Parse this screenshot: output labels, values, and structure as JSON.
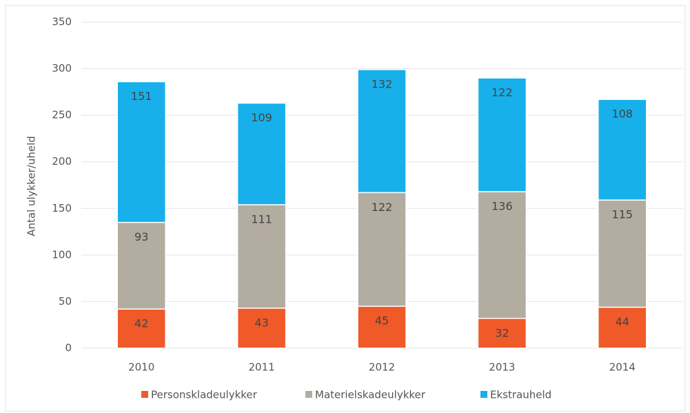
{
  "chart_data": {
    "type": "stacked_bar",
    "y_label": "Antal ulykker/uheld",
    "categories": [
      "2010",
      "2011",
      "2012",
      "2013",
      "2014"
    ],
    "series": [
      {
        "name": "Personskladeulykker",
        "color": "#f05a28",
        "values": [
          42,
          43,
          45,
          32,
          44
        ]
      },
      {
        "name": "Materielskadeulykker",
        "color": "#b3aca1",
        "values": [
          93,
          111,
          122,
          136,
          115
        ]
      },
      {
        "name": "Ekstrauheld",
        "color": "#17b0ea",
        "values": [
          151,
          109,
          132,
          122,
          108
        ]
      }
    ],
    "ylim": [
      0,
      350
    ],
    "yticks": [
      0,
      50,
      100,
      150,
      200,
      250,
      300,
      350
    ],
    "grid": true
  }
}
